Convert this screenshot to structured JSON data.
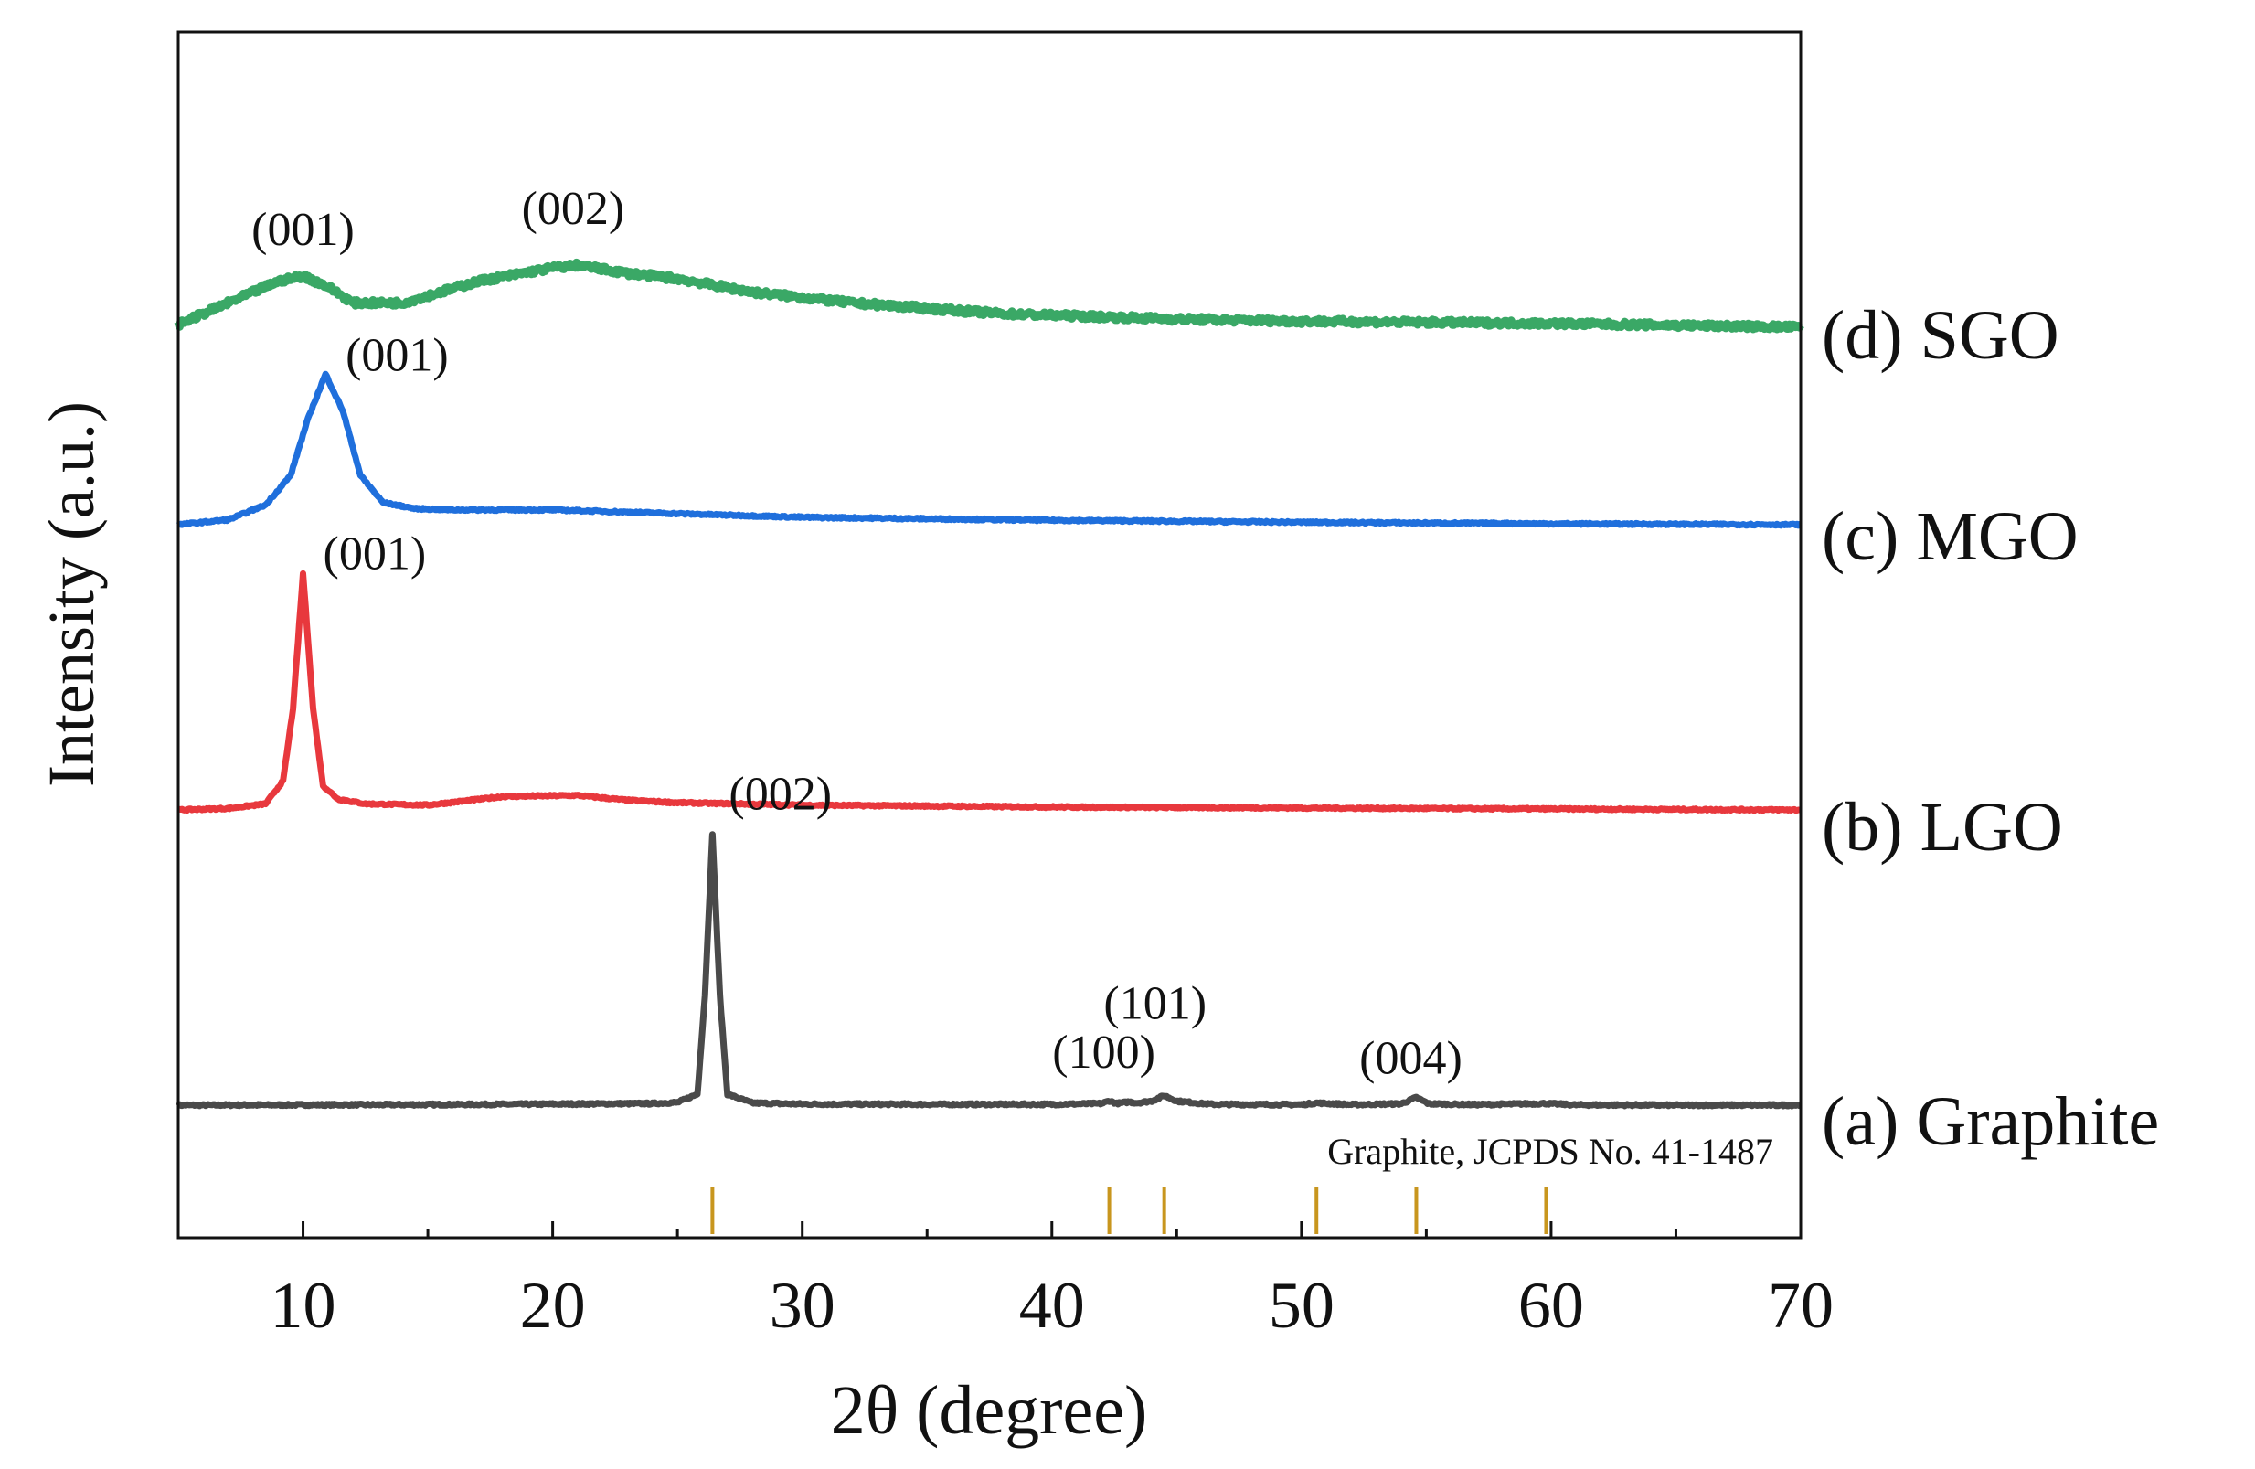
{
  "chart_data": {
    "type": "line",
    "title": "",
    "xlabel": "2θ (degree)",
    "ylabel": "Intensity (a.u.)",
    "xlim": [
      5,
      70
    ],
    "xticks": [
      10,
      20,
      30,
      40,
      50,
      60,
      70
    ],
    "xtick_labels": [
      "10",
      "20",
      "30",
      "40",
      "50",
      "60",
      "70"
    ],
    "y_units": "arbitrary (stacked, offset traces)",
    "reference": {
      "label": "Graphite, JCPDS No. 41-1487",
      "color": "#c8961e",
      "positions": [
        26.4,
        42.3,
        44.5,
        50.6,
        54.6,
        59.8
      ]
    },
    "series": [
      {
        "name": "(a) Graphite",
        "color": "#4a4a4a",
        "noise": 0.0035,
        "x": [
          5,
          10,
          15,
          20,
          24,
          25,
          25.8,
          26.1,
          26.4,
          26.7,
          27.0,
          28,
          30,
          35,
          40,
          42,
          42.3,
          42.6,
          43.1,
          43.4,
          44.0,
          44.5,
          45.0,
          46.0,
          46.5,
          50,
          50.6,
          52,
          54.0,
          54.6,
          55.1,
          57,
          59.8,
          61,
          65,
          70
        ],
        "y": [
          0.0,
          0.001,
          0.002,
          0.004,
          0.006,
          0.01,
          0.04,
          0.4,
          0.985,
          0.4,
          0.04,
          0.008,
          0.004,
          0.003,
          0.003,
          0.006,
          0.016,
          0.006,
          0.012,
          0.008,
          0.015,
          0.035,
          0.015,
          0.006,
          0.003,
          0.002,
          0.008,
          0.002,
          0.005,
          0.028,
          0.005,
          0.002,
          0.006,
          0.001,
          0.0,
          0.0
        ]
      },
      {
        "name": "(b) LGO",
        "color": "#e8383d",
        "noise": 0.0035,
        "x": [
          5,
          7,
          8.5,
          9.2,
          9.6,
          10.0,
          10.4,
          10.8,
          11.4,
          12.5,
          15,
          18,
          21,
          23,
          25,
          30,
          40,
          50,
          60,
          70
        ],
        "y": [
          0.0,
          0.006,
          0.025,
          0.12,
          0.42,
          0.975,
          0.42,
          0.1,
          0.045,
          0.025,
          0.02,
          0.055,
          0.06,
          0.04,
          0.03,
          0.02,
          0.012,
          0.008,
          0.004,
          0.0
        ]
      },
      {
        "name": "(c) MGO",
        "color": "#1f6fdc",
        "noise": 0.0035,
        "x": [
          5,
          7,
          8.5,
          9.5,
          10.2,
          10.9,
          11.6,
          12.3,
          13.2,
          14.5,
          16,
          20,
          25,
          30,
          40,
          50,
          60,
          70
        ],
        "y": [
          0.0,
          0.02,
          0.08,
          0.2,
          0.43,
          0.61,
          0.46,
          0.2,
          0.09,
          0.065,
          0.06,
          0.06,
          0.045,
          0.03,
          0.018,
          0.01,
          0.004,
          0.0
        ]
      },
      {
        "name": "(d) SGO",
        "color": "#3aa866",
        "noise": 0.01,
        "x": [
          5,
          7,
          9,
          10,
          11,
          12,
          14,
          17,
          20,
          21,
          23,
          25,
          28,
          32,
          38,
          45,
          50,
          60,
          70
        ],
        "y": [
          0.0,
          0.08,
          0.16,
          0.18,
          0.14,
          0.08,
          0.08,
          0.16,
          0.21,
          0.22,
          0.19,
          0.17,
          0.12,
          0.08,
          0.04,
          0.02,
          0.012,
          0.004,
          -0.01
        ]
      }
    ],
    "peak_annotations": [
      {
        "series": "(a) Graphite",
        "text": "(002)",
        "x": 26.4
      },
      {
        "series": "(a) Graphite",
        "text": "(100)",
        "x": 42.3
      },
      {
        "series": "(a) Graphite",
        "text": "(101)",
        "x": 44.5
      },
      {
        "series": "(a) Graphite",
        "text": "(004)",
        "x": 54.6
      },
      {
        "series": "(b) LGO",
        "text": "(001)",
        "x": 10.0
      },
      {
        "series": "(c) MGO",
        "text": "(001)",
        "x": 10.9
      },
      {
        "series": "(d) SGO",
        "text": "(001)",
        "x": 10.0
      },
      {
        "series": "(d) SGO",
        "text": "(002)",
        "x": 21.0
      }
    ]
  }
}
